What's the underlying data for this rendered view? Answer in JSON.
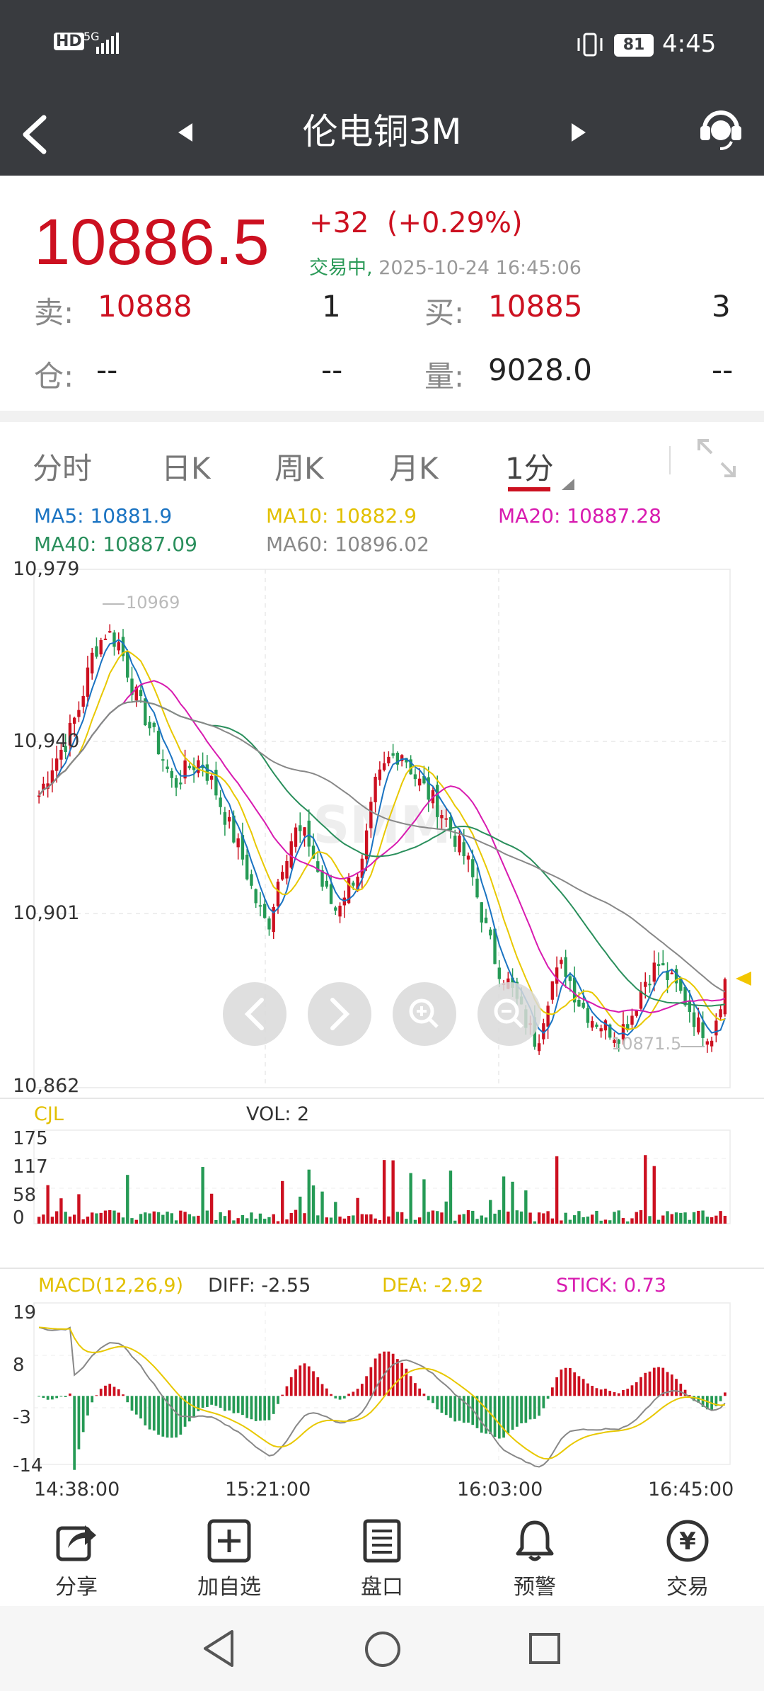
{
  "status_bar": {
    "network": "5G",
    "hd": "HD",
    "battery": "81",
    "time": "4:45"
  },
  "header": {
    "title": "伦电铜3M"
  },
  "quote": {
    "last_price": "10886.5",
    "change": "+32",
    "change_pct": "(+0.29%)",
    "trading_status": "交易中,",
    "timestamp": "2025-10-24 16:45:06",
    "sell_label": "卖:",
    "sell_price": "10888",
    "sell_qty": "1",
    "buy_label": "买:",
    "buy_price": "10885",
    "buy_qty": "3",
    "oi_label": "仓:",
    "oi_value": "--",
    "oi_change": "--",
    "vol_label": "量:",
    "vol_value": "9028.0",
    "vol_change": "--"
  },
  "tabs": [
    "分时",
    "日K",
    "周K",
    "月K",
    "1分"
  ],
  "active_tab": "1分",
  "ma": {
    "ma5": "MA5: 10881.9",
    "ma10": "MA10: 10882.9",
    "ma20": "MA20: 10887.28",
    "ma40": "MA40: 10887.09",
    "ma60": "MA60: 10896.02"
  },
  "colors": {
    "up": "#cc1020",
    "down": "#259a55",
    "ma5": "#1a73c2",
    "ma10": "#e8c800",
    "ma20": "#d81bb0",
    "ma40": "#2a8f5c",
    "ma60": "#888888"
  },
  "price_axis": [
    "10,979",
    "10,940",
    "10,901",
    "10,862"
  ],
  "annotations": {
    "high": "10969",
    "low": "10871.5"
  },
  "vol_panel": {
    "title": "CJL",
    "vol": "VOL: 2",
    "axis": [
      "175",
      "117",
      "58",
      "0"
    ]
  },
  "macd_panel": {
    "title": "MACD(12,26,9)",
    "diff": "DIFF: -2.55",
    "dea": "DEA: -2.92",
    "stick": "STICK: 0.73",
    "axis": [
      "19",
      "8",
      "-3",
      "-14"
    ]
  },
  "time_axis": [
    "14:38:00",
    "15:21:00",
    "16:03:00",
    "16:45:00"
  ],
  "watermark": "SMM",
  "bottom_nav": [
    {
      "label": "分享",
      "icon": "share-icon"
    },
    {
      "label": "加自选",
      "icon": "add-watchlist-icon"
    },
    {
      "label": "盘口",
      "icon": "orderbook-icon"
    },
    {
      "label": "预警",
      "icon": "bell-icon"
    },
    {
      "label": "交易",
      "icon": "yuan-icon"
    }
  ],
  "chart_data": {
    "type": "candlestick",
    "y_range": [
      10862,
      10979
    ],
    "x_ticks": [
      "14:38:00",
      "15:21:00",
      "16:03:00",
      "16:45:00"
    ],
    "close_path": [
      10928,
      10935,
      10940,
      10948,
      10960,
      10965,
      10962,
      10952,
      10945,
      10938,
      10930,
      10934,
      10936,
      10930,
      10922,
      10915,
      10905,
      10898,
      10912,
      10920,
      10918,
      10908,
      10902,
      10908,
      10912,
      10930,
      10936,
      10938,
      10932,
      10928,
      10924,
      10918,
      10912,
      10900,
      10890,
      10885,
      10878,
      10872,
      10885,
      10890,
      10882,
      10878,
      10876,
      10874,
      10878,
      10886,
      10890,
      10886,
      10882,
      10876,
      10874,
      10886
    ]
  }
}
